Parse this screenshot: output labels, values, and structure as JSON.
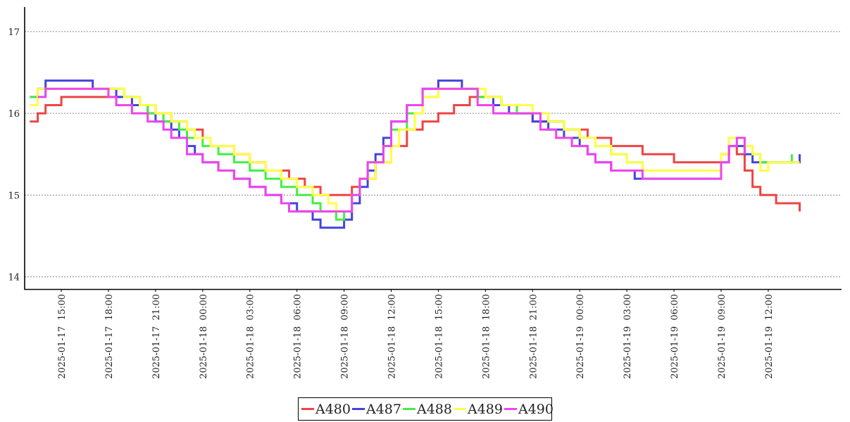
{
  "chart_data": {
    "type": "line",
    "title": "",
    "xlabel": "",
    "ylabel": "",
    "ylim": [
      13.85,
      17.3
    ],
    "xlim": [
      "2025-01-17 12:40",
      "2025-01-19 16:40"
    ],
    "y_ticks": [
      14,
      15,
      16,
      17
    ],
    "y_tick_labels": [
      "14",
      "15",
      "16",
      "17"
    ],
    "x_ticks": [
      "2025-01-17 15:00",
      "2025-01-17 18:00",
      "2025-01-17 21:00",
      "2025-01-18 00:00",
      "2025-01-18 03:00",
      "2025-01-18 06:00",
      "2025-01-18 09:00",
      "2025-01-18 12:00",
      "2025-01-18 15:00",
      "2025-01-18 18:00",
      "2025-01-18 21:00",
      "2025-01-19 00:00",
      "2025-01-19 03:00",
      "2025-01-19 06:00",
      "2025-01-19 09:00",
      "2025-01-19 12:00"
    ],
    "x_tick_labels": [
      "2025-01-17  15:00",
      "2025-01-17  18:00",
      "2025-01-17  21:00",
      "2025-01-18  00:00",
      "2025-01-18  03:00",
      "2025-01-18  06:00",
      "2025-01-18  09:00",
      "2025-01-18  12:00",
      "2025-01-18  15:00",
      "2025-01-18  18:00",
      "2025-01-18  21:00",
      "2025-01-19  00:00",
      "2025-01-19  03:00",
      "2025-01-19  06:00",
      "2025-01-19  09:00",
      "2025-01-19  12:00"
    ],
    "grid": "horizontal dotted",
    "legend_position": "bottom-center",
    "series": [
      {
        "name": "A480",
        "color": "#ee4444",
        "points": [
          [
            "2025-01-17 13:00",
            15.9
          ],
          [
            "2025-01-17 13:30",
            16.0
          ],
          [
            "2025-01-17 14:00",
            16.1
          ],
          [
            "2025-01-17 15:00",
            16.2
          ],
          [
            "2025-01-17 18:30",
            16.2
          ],
          [
            "2025-01-17 20:00",
            16.1
          ],
          [
            "2025-01-17 21:00",
            16.0
          ],
          [
            "2025-01-17 22:00",
            15.9
          ],
          [
            "2025-01-17 23:00",
            15.8
          ],
          [
            "2025-01-18 00:00",
            15.7
          ],
          [
            "2025-01-18 00:30",
            15.6
          ],
          [
            "2025-01-18 02:00",
            15.5
          ],
          [
            "2025-01-18 03:00",
            15.4
          ],
          [
            "2025-01-18 04:00",
            15.3
          ],
          [
            "2025-01-18 05:30",
            15.2
          ],
          [
            "2025-01-18 06:30",
            15.1
          ],
          [
            "2025-01-18 07:30",
            15.0
          ],
          [
            "2025-01-18 09:30",
            15.1
          ],
          [
            "2025-01-18 10:00",
            15.2
          ],
          [
            "2025-01-18 11:00",
            15.4
          ],
          [
            "2025-01-18 12:00",
            15.6
          ],
          [
            "2025-01-18 13:00",
            15.8
          ],
          [
            "2025-01-18 14:00",
            15.9
          ],
          [
            "2025-01-18 15:00",
            16.0
          ],
          [
            "2025-01-18 16:00",
            16.1
          ],
          [
            "2025-01-18 17:00",
            16.2
          ],
          [
            "2025-01-18 19:00",
            16.1
          ],
          [
            "2025-01-18 20:00",
            16.0
          ],
          [
            "2025-01-18 21:00",
            15.9
          ],
          [
            "2025-01-18 23:00",
            15.8
          ],
          [
            "2025-01-19 00:00",
            15.8
          ],
          [
            "2025-01-19 00:30",
            15.7
          ],
          [
            "2025-01-19 02:00",
            15.6
          ],
          [
            "2025-01-19 04:00",
            15.5
          ],
          [
            "2025-01-19 06:00",
            15.4
          ],
          [
            "2025-01-19 09:00",
            15.5
          ],
          [
            "2025-01-19 09:30",
            15.6
          ],
          [
            "2025-01-19 10:00",
            15.5
          ],
          [
            "2025-01-19 10:30",
            15.3
          ],
          [
            "2025-01-19 11:00",
            15.1
          ],
          [
            "2025-01-19 11:30",
            15.0
          ],
          [
            "2025-01-19 12:30",
            14.9
          ],
          [
            "2025-01-19 14:00",
            14.8
          ]
        ]
      },
      {
        "name": "A487",
        "color": "#4444dd",
        "points": [
          [
            "2025-01-17 13:00",
            16.2
          ],
          [
            "2025-01-17 13:30",
            16.3
          ],
          [
            "2025-01-17 14:00",
            16.4
          ],
          [
            "2025-01-17 17:00",
            16.3
          ],
          [
            "2025-01-17 18:30",
            16.2
          ],
          [
            "2025-01-17 19:30",
            16.1
          ],
          [
            "2025-01-17 20:30",
            16.0
          ],
          [
            "2025-01-17 21:00",
            15.9
          ],
          [
            "2025-01-17 22:00",
            15.8
          ],
          [
            "2025-01-17 22:30",
            15.7
          ],
          [
            "2025-01-17 23:00",
            15.6
          ],
          [
            "2025-01-17 23:30",
            15.5
          ],
          [
            "2025-01-18 00:00",
            15.4
          ],
          [
            "2025-01-18 01:00",
            15.3
          ],
          [
            "2025-01-18 02:00",
            15.2
          ],
          [
            "2025-01-18 03:00",
            15.1
          ],
          [
            "2025-01-18 04:00",
            15.0
          ],
          [
            "2025-01-18 05:00",
            14.9
          ],
          [
            "2025-01-18 06:00",
            14.8
          ],
          [
            "2025-01-18 07:00",
            14.7
          ],
          [
            "2025-01-18 07:30",
            14.6
          ],
          [
            "2025-01-18 09:00",
            14.7
          ],
          [
            "2025-01-18 09:30",
            14.9
          ],
          [
            "2025-01-18 10:00",
            15.1
          ],
          [
            "2025-01-18 10:30",
            15.3
          ],
          [
            "2025-01-18 11:00",
            15.5
          ],
          [
            "2025-01-18 11:30",
            15.7
          ],
          [
            "2025-01-18 12:00",
            15.9
          ],
          [
            "2025-01-18 13:00",
            16.1
          ],
          [
            "2025-01-18 14:00",
            16.3
          ],
          [
            "2025-01-18 15:00",
            16.4
          ],
          [
            "2025-01-18 16:30",
            16.3
          ],
          [
            "2025-01-18 17:30",
            16.2
          ],
          [
            "2025-01-18 18:30",
            16.1
          ],
          [
            "2025-01-18 19:30",
            16.0
          ],
          [
            "2025-01-18 21:00",
            15.9
          ],
          [
            "2025-01-18 22:00",
            15.8
          ],
          [
            "2025-01-18 23:00",
            15.7
          ],
          [
            "2025-01-19 00:00",
            15.6
          ],
          [
            "2025-01-19 00:30",
            15.5
          ],
          [
            "2025-01-19 01:00",
            15.4
          ],
          [
            "2025-01-19 02:00",
            15.3
          ],
          [
            "2025-01-19 03:30",
            15.2
          ],
          [
            "2025-01-19 08:30",
            15.2
          ],
          [
            "2025-01-19 09:00",
            15.4
          ],
          [
            "2025-01-19 09:30",
            15.6
          ],
          [
            "2025-01-19 10:30",
            15.5
          ],
          [
            "2025-01-19 11:00",
            15.4
          ],
          [
            "2025-01-19 14:00",
            15.5
          ]
        ]
      },
      {
        "name": "A488",
        "color": "#44ee44",
        "points": [
          [
            "2025-01-17 13:00",
            16.2
          ],
          [
            "2025-01-17 14:00",
            16.3
          ],
          [
            "2025-01-17 17:30",
            16.3
          ],
          [
            "2025-01-17 19:00",
            16.2
          ],
          [
            "2025-01-17 20:00",
            16.1
          ],
          [
            "2025-01-17 20:30",
            16.0
          ],
          [
            "2025-01-17 21:30",
            15.9
          ],
          [
            "2025-01-17 22:30",
            15.8
          ],
          [
            "2025-01-17 23:00",
            15.7
          ],
          [
            "2025-01-18 00:00",
            15.6
          ],
          [
            "2025-01-18 01:00",
            15.5
          ],
          [
            "2025-01-18 02:00",
            15.4
          ],
          [
            "2025-01-18 03:00",
            15.3
          ],
          [
            "2025-01-18 04:00",
            15.2
          ],
          [
            "2025-01-18 05:00",
            15.1
          ],
          [
            "2025-01-18 06:00",
            15.0
          ],
          [
            "2025-01-18 07:00",
            14.9
          ],
          [
            "2025-01-18 07:30",
            14.8
          ],
          [
            "2025-01-18 08:30",
            14.7
          ],
          [
            "2025-01-18 09:00",
            14.8
          ],
          [
            "2025-01-18 09:30",
            15.0
          ],
          [
            "2025-01-18 10:00",
            15.2
          ],
          [
            "2025-01-18 10:30",
            15.4
          ],
          [
            "2025-01-18 11:30",
            15.6
          ],
          [
            "2025-01-18 12:00",
            15.8
          ],
          [
            "2025-01-18 13:00",
            16.0
          ],
          [
            "2025-01-18 14:00",
            16.2
          ],
          [
            "2025-01-18 15:00",
            16.3
          ],
          [
            "2025-01-18 16:30",
            16.3
          ],
          [
            "2025-01-18 17:30",
            16.2
          ],
          [
            "2025-01-18 19:00",
            16.1
          ],
          [
            "2025-01-18 20:00",
            16.0
          ],
          [
            "2025-01-18 22:00",
            15.9
          ],
          [
            "2025-01-18 23:00",
            15.8
          ],
          [
            "2025-01-19 00:00",
            15.7
          ],
          [
            "2025-01-19 01:00",
            15.6
          ],
          [
            "2025-01-19 02:00",
            15.5
          ],
          [
            "2025-01-19 03:00",
            15.4
          ],
          [
            "2025-01-19 04:00",
            15.3
          ],
          [
            "2025-01-19 08:30",
            15.3
          ],
          [
            "2025-01-19 09:00",
            15.5
          ],
          [
            "2025-01-19 09:30",
            15.7
          ],
          [
            "2025-01-19 10:30",
            15.6
          ],
          [
            "2025-01-19 11:00",
            15.5
          ],
          [
            "2025-01-19 11:30",
            15.4
          ],
          [
            "2025-01-19 13:30",
            15.5
          ]
        ]
      },
      {
        "name": "A489",
        "color": "#ffff44",
        "points": [
          [
            "2025-01-17 13:00",
            16.1
          ],
          [
            "2025-01-17 13:30",
            16.3
          ],
          [
            "2025-01-17 17:30",
            16.3
          ],
          [
            "2025-01-17 19:00",
            16.2
          ],
          [
            "2025-01-17 20:00",
            16.1
          ],
          [
            "2025-01-17 21:00",
            16.0
          ],
          [
            "2025-01-17 22:00",
            15.9
          ],
          [
            "2025-01-17 23:00",
            15.8
          ],
          [
            "2025-01-17 23:30",
            15.7
          ],
          [
            "2025-01-18 00:30",
            15.6
          ],
          [
            "2025-01-18 02:00",
            15.5
          ],
          [
            "2025-01-18 03:00",
            15.4
          ],
          [
            "2025-01-18 04:00",
            15.3
          ],
          [
            "2025-01-18 05:00",
            15.2
          ],
          [
            "2025-01-18 06:00",
            15.1
          ],
          [
            "2025-01-18 07:00",
            15.0
          ],
          [
            "2025-01-18 08:00",
            14.9
          ],
          [
            "2025-01-18 08:30",
            14.8
          ],
          [
            "2025-01-18 09:30",
            15.0
          ],
          [
            "2025-01-18 10:00",
            15.2
          ],
          [
            "2025-01-18 11:00",
            15.4
          ],
          [
            "2025-01-18 12:00",
            15.6
          ],
          [
            "2025-01-18 12:30",
            15.8
          ],
          [
            "2025-01-18 13:30",
            16.0
          ],
          [
            "2025-01-18 14:00",
            16.2
          ],
          [
            "2025-01-18 15:00",
            16.3
          ],
          [
            "2025-01-18 17:00",
            16.3
          ],
          [
            "2025-01-18 18:00",
            16.2
          ],
          [
            "2025-01-18 19:00",
            16.1
          ],
          [
            "2025-01-18 21:00",
            16.0
          ],
          [
            "2025-01-18 22:00",
            15.9
          ],
          [
            "2025-01-18 23:00",
            15.8
          ],
          [
            "2025-01-19 00:00",
            15.7
          ],
          [
            "2025-01-19 01:00",
            15.6
          ],
          [
            "2025-01-19 02:00",
            15.5
          ],
          [
            "2025-01-19 03:00",
            15.4
          ],
          [
            "2025-01-19 04:00",
            15.3
          ],
          [
            "2025-01-19 08:30",
            15.3
          ],
          [
            "2025-01-19 09:00",
            15.5
          ],
          [
            "2025-01-19 09:30",
            15.7
          ],
          [
            "2025-01-19 10:30",
            15.6
          ],
          [
            "2025-01-19 11:00",
            15.5
          ],
          [
            "2025-01-19 11:30",
            15.3
          ],
          [
            "2025-01-19 12:00",
            15.4
          ],
          [
            "2025-01-19 14:00",
            15.4
          ]
        ]
      },
      {
        "name": "A490",
        "color": "#ee44ee",
        "points": [
          [
            "2025-01-17 13:30",
            16.2
          ],
          [
            "2025-01-17 14:00",
            16.3
          ],
          [
            "2025-01-17 16:00",
            16.3
          ],
          [
            "2025-01-17 18:00",
            16.2
          ],
          [
            "2025-01-17 18:30",
            16.1
          ],
          [
            "2025-01-17 19:30",
            16.0
          ],
          [
            "2025-01-17 20:30",
            15.9
          ],
          [
            "2025-01-17 21:30",
            15.8
          ],
          [
            "2025-01-17 22:00",
            15.7
          ],
          [
            "2025-01-17 23:00",
            15.5
          ],
          [
            "2025-01-18 00:00",
            15.4
          ],
          [
            "2025-01-18 01:00",
            15.3
          ],
          [
            "2025-01-18 02:00",
            15.2
          ],
          [
            "2025-01-18 03:00",
            15.1
          ],
          [
            "2025-01-18 04:00",
            15.0
          ],
          [
            "2025-01-18 05:00",
            14.9
          ],
          [
            "2025-01-18 05:30",
            14.8
          ],
          [
            "2025-01-18 06:30",
            14.8
          ],
          [
            "2025-01-18 08:30",
            14.8
          ],
          [
            "2025-01-18 09:30",
            15.0
          ],
          [
            "2025-01-18 10:00",
            15.2
          ],
          [
            "2025-01-18 10:30",
            15.4
          ],
          [
            "2025-01-18 11:30",
            15.6
          ],
          [
            "2025-01-18 12:00",
            15.9
          ],
          [
            "2025-01-18 13:00",
            16.1
          ],
          [
            "2025-01-18 14:00",
            16.3
          ],
          [
            "2025-01-18 16:30",
            16.3
          ],
          [
            "2025-01-18 17:30",
            16.1
          ],
          [
            "2025-01-18 18:30",
            16.0
          ],
          [
            "2025-01-18 20:00",
            16.0
          ],
          [
            "2025-01-18 21:30",
            15.8
          ],
          [
            "2025-01-18 22:30",
            15.7
          ],
          [
            "2025-01-18 23:30",
            15.6
          ],
          [
            "2025-01-19 00:30",
            15.5
          ],
          [
            "2025-01-19 01:00",
            15.4
          ],
          [
            "2025-01-19 02:00",
            15.3
          ],
          [
            "2025-01-19 04:00",
            15.2
          ],
          [
            "2025-01-19 08:30",
            15.2
          ],
          [
            "2025-01-19 09:00",
            15.4
          ],
          [
            "2025-01-19 09:30",
            15.6
          ],
          [
            "2025-01-19 10:00",
            15.7
          ],
          [
            "2025-01-19 10:30",
            15.5
          ]
        ]
      }
    ]
  }
}
